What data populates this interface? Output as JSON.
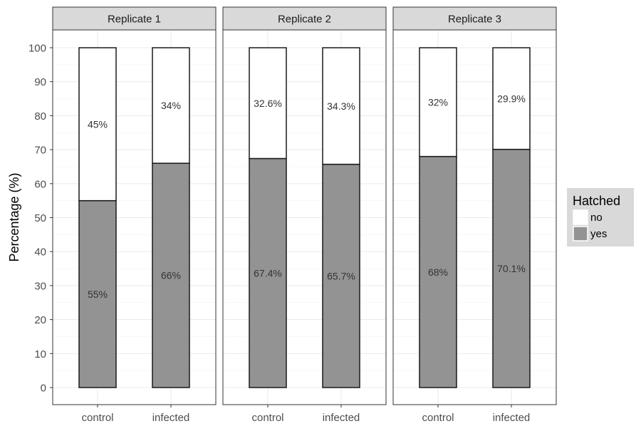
{
  "chart_data": {
    "type": "bar",
    "stacked": true,
    "ylabel": "Percentage (%)",
    "xlabel": "",
    "ylim": [
      0,
      100
    ],
    "y_ticks": [
      0,
      10,
      20,
      30,
      40,
      50,
      60,
      70,
      80,
      90,
      100
    ],
    "grid": true,
    "legend": {
      "title": "Hatched",
      "position": "right",
      "entries": [
        {
          "label": "no",
          "color": "#ffffff"
        },
        {
          "label": "yes",
          "color": "#939393"
        }
      ]
    },
    "facets": [
      {
        "name": "Replicate 1",
        "categories": [
          "control",
          "infected"
        ],
        "series": [
          {
            "name": "yes",
            "values": [
              55,
              66
            ],
            "labels": [
              "55%",
              "66%"
            ]
          },
          {
            "name": "no",
            "values": [
              45,
              34
            ],
            "labels": [
              "45%",
              "34%"
            ]
          }
        ]
      },
      {
        "name": "Replicate 2",
        "categories": [
          "control",
          "infected"
        ],
        "series": [
          {
            "name": "yes",
            "values": [
              67.4,
              65.7
            ],
            "labels": [
              "67.4%",
              "65.7%"
            ]
          },
          {
            "name": "no",
            "values": [
              32.6,
              34.3
            ],
            "labels": [
              "32.6%",
              "34.3%"
            ]
          }
        ]
      },
      {
        "name": "Replicate 3",
        "categories": [
          "control",
          "infected"
        ],
        "series": [
          {
            "name": "yes",
            "values": [
              68,
              70.1
            ],
            "labels": [
              "68%",
              "70.1%"
            ]
          },
          {
            "name": "no",
            "values": [
              32,
              29.9
            ],
            "labels": [
              "32%",
              "29.9%"
            ]
          }
        ]
      }
    ],
    "colors": {
      "yes": "#939393",
      "no": "#ffffff",
      "strip": "#d9d9d9",
      "grid": "#ebebeb",
      "panel_border": "#333333",
      "bar_outline": "#1a1a1a"
    }
  }
}
